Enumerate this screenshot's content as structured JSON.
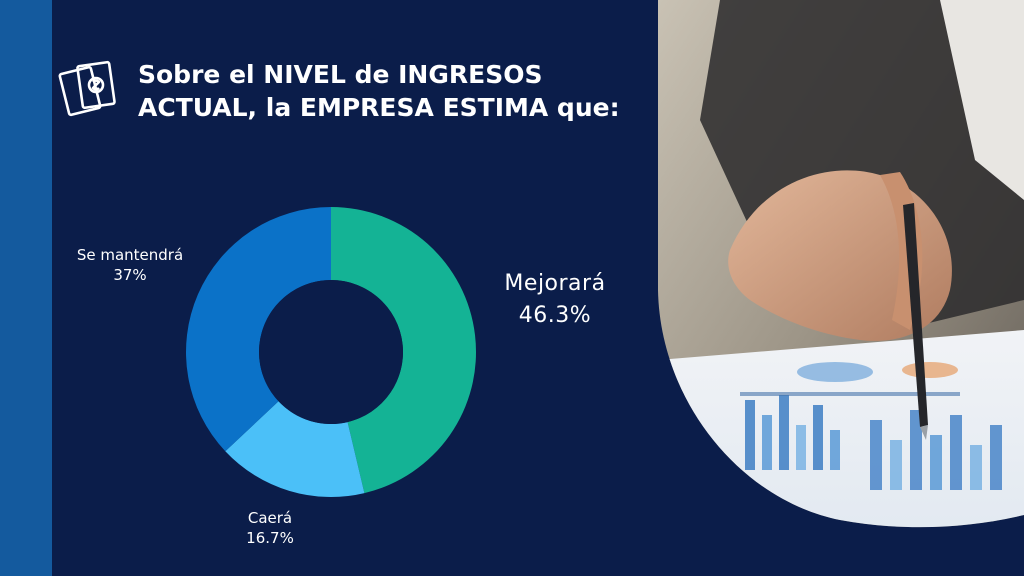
{
  "title_lines": [
    "Sobre el NIVEL de INGRESOS",
    "ACTUAL, la EMPRESA ESTIMA que:"
  ],
  "icons": {
    "title_icon": "money-bills-icon"
  },
  "colors": {
    "background": "#0b1d4a",
    "strip": "#145a9e",
    "mejorara": "#14b395",
    "caera": "#4bc0f8",
    "mantendra": "#0b72c8"
  },
  "chart_data": {
    "type": "pie",
    "title": "Sobre el NIVEL de INGRESOS ACTUAL, la EMPRESA ESTIMA que:",
    "donut": true,
    "slices": [
      {
        "label": "Mejorará",
        "value": 46.3,
        "display": "46.3%",
        "color": "#14b395"
      },
      {
        "label": "Caerá",
        "value": 16.7,
        "display": "16.7%",
        "color": "#4bc0f8"
      },
      {
        "label": "Se mantendrá",
        "value": 37,
        "display": "37%",
        "color": "#0b72c8"
      }
    ]
  }
}
